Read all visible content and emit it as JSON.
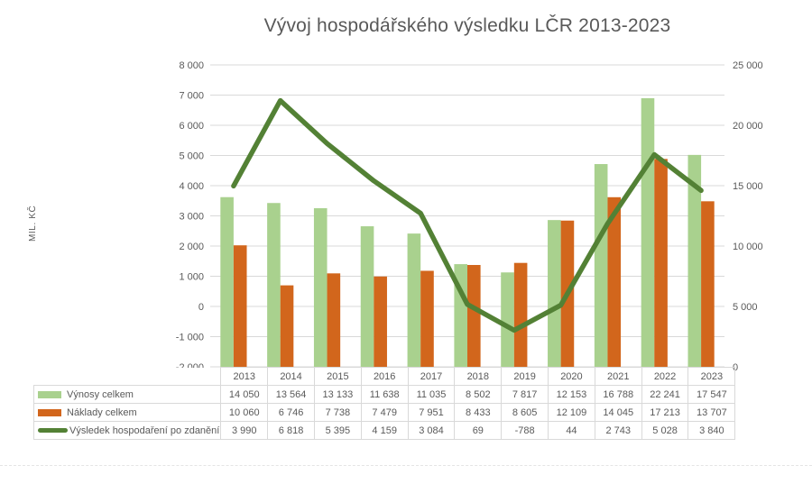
{
  "chart_data": {
    "type": "combo",
    "title": "Vývoj hospodářského výsledku LČR 2013-2023",
    "categories": [
      "2013",
      "2014",
      "2015",
      "2016",
      "2017",
      "2018",
      "2019",
      "2020",
      "2021",
      "2022",
      "2023"
    ],
    "series": [
      {
        "name": "Výnosy celkem",
        "type": "bar",
        "axis": "right",
        "color": "#a9d18e",
        "values": [
          14050,
          13564,
          13133,
          11638,
          11035,
          8502,
          7817,
          12153,
          16788,
          22241,
          17547
        ]
      },
      {
        "name": "Náklady celkem",
        "type": "bar",
        "axis": "right",
        "color": "#d2661c",
        "values": [
          10060,
          6746,
          7738,
          7479,
          7951,
          8433,
          8605,
          12109,
          14045,
          17213,
          13707
        ]
      },
      {
        "name": "Výsledek hospodaření po zdanění",
        "type": "line",
        "axis": "left",
        "color": "#538135",
        "values": [
          3990,
          6818,
          5395,
          4159,
          3084,
          69,
          -788,
          44,
          2743,
          5028,
          3840
        ]
      }
    ],
    "left_axis": {
      "label": "MIL. KČ",
      "min": -2000,
      "max": 8000,
      "step": 1000,
      "ticks": [
        "8 000",
        "7 000",
        "6 000",
        "5 000",
        "4 000",
        "3 000",
        "2 000",
        "1 000",
        "0",
        "-1 000",
        "-2 000"
      ]
    },
    "right_axis": {
      "min": 0,
      "max": 25000,
      "step": 5000,
      "ticks": [
        "25 000",
        "20 000",
        "15 000",
        "10 000",
        "5 000",
        "0"
      ]
    },
    "grid": "horizontal-only",
    "legend_position": "table-left"
  },
  "theme": {
    "gridline_color": "#d9d9d9",
    "table_border_color": "#d9d9d9",
    "text_color": "#595959"
  }
}
